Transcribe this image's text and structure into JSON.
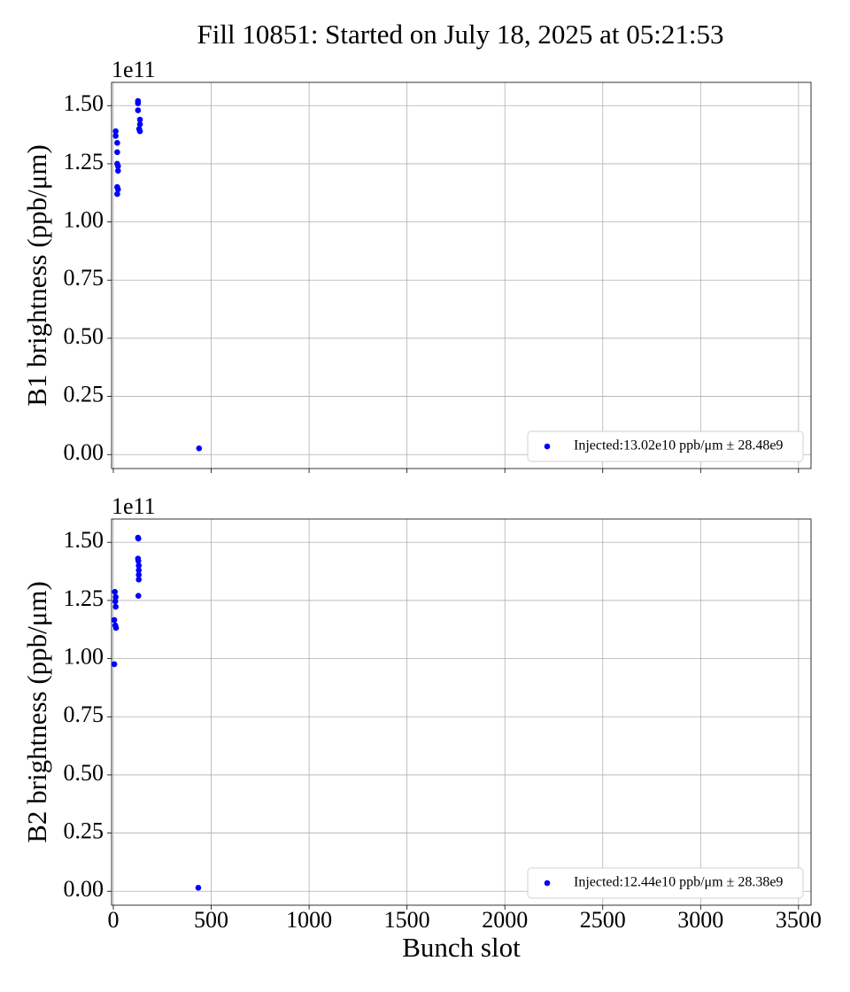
{
  "title": "Fill 10851: Started on July 18, 2025 at 05:21:53",
  "chart_data": [
    {
      "type": "scatter",
      "ylabel": "B1 brightness (ppb/μm)",
      "offset_label": "1e11",
      "xlim": [
        -9,
        3564
      ],
      "xticks": [
        0,
        500,
        1000,
        1500,
        2000,
        2500,
        3000,
        3500
      ],
      "show_xtick_labels": false,
      "ylim": [
        -0.06,
        1.6
      ],
      "yticks": [
        {
          "value": 0,
          "label": "0.00"
        },
        {
          "value": 0.25,
          "label": "0.25"
        },
        {
          "value": 0.5,
          "label": "0.50"
        },
        {
          "value": 0.75,
          "label": "0.75"
        },
        {
          "value": 1,
          "label": "1.00"
        },
        {
          "value": 1.25,
          "label": "1.25"
        },
        {
          "value": 1.5,
          "label": "1.50"
        }
      ],
      "grid": true,
      "legend": "lower right",
      "series": [
        {
          "name": "Injected:13.02e10 ppb/μm ± 28.48e9",
          "color": "#0000ff",
          "x": [
            12,
            12,
            20,
            20,
            20,
            24,
            24,
            20,
            24,
            20,
            126,
            126,
            126,
            136,
            136,
            132,
            136,
            438
          ],
          "values": [
            1.39,
            1.37,
            1.34,
            1.3,
            1.25,
            1.24,
            1.22,
            1.15,
            1.14,
            1.12,
            1.52,
            1.51,
            1.48,
            1.44,
            1.42,
            1.4,
            1.39,
            0.027
          ]
        }
      ]
    },
    {
      "type": "scatter",
      "ylabel": "B2 brightness (ppb/μm)",
      "xlabel": "Bunch slot",
      "offset_label": "1e11",
      "xlim": [
        -9,
        3564
      ],
      "xticks": [
        0,
        500,
        1000,
        1500,
        2000,
        2500,
        3000,
        3500
      ],
      "show_xtick_labels": true,
      "ylim": [
        -0.06,
        1.6
      ],
      "yticks": [
        {
          "value": 0,
          "label": "0.00"
        },
        {
          "value": 0.25,
          "label": "0.25"
        },
        {
          "value": 0.5,
          "label": "0.50"
        },
        {
          "value": 0.75,
          "label": "0.75"
        },
        {
          "value": 1,
          "label": "1.00"
        },
        {
          "value": 1.25,
          "label": "1.25"
        },
        {
          "value": 1.5,
          "label": "1.50"
        }
      ],
      "grid": true,
      "legend": "lower right",
      "series": [
        {
          "name": "Injected:12.44e10 ppb/μm ± 28.38e9",
          "color": "#0000ff",
          "x": [
            8,
            12,
            10,
            12,
            5,
            10,
            14,
            5,
            126,
            128,
            126,
            128,
            130,
            130,
            130,
            130,
            128,
            434
          ],
          "values": [
            1.287,
            1.265,
            1.246,
            1.223,
            1.166,
            1.143,
            1.132,
            0.976,
            1.52,
            1.516,
            1.43,
            1.42,
            1.4,
            1.38,
            1.36,
            1.34,
            1.27,
            0.015
          ]
        }
      ]
    }
  ]
}
